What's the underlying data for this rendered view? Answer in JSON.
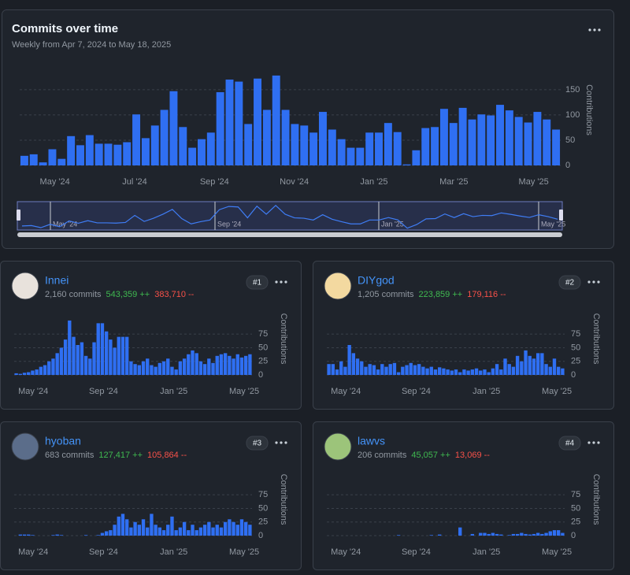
{
  "header": {
    "title": "Commits over time",
    "subtitle": "Weekly from Apr 7, 2024 to May 18, 2025"
  },
  "navigator": {
    "labels": [
      "May '24",
      "Sep '24",
      "Jan '25",
      "May '25"
    ]
  },
  "contributors": [
    {
      "name": "Innei",
      "commits": "2,160 commits",
      "additions": "543,359 ++",
      "deletions": "383,710 --",
      "rank": "#1"
    },
    {
      "name": "DIYgod",
      "commits": "1,205 commits",
      "additions": "223,859 ++",
      "deletions": "179,116 --",
      "rank": "#2"
    },
    {
      "name": "hyoban",
      "commits": "683 commits",
      "additions": "127,417 ++",
      "deletions": "105,864 --",
      "rank": "#3"
    },
    {
      "name": "lawvs",
      "commits": "206 commits",
      "additions": "45,057 ++",
      "deletions": "13,069 --",
      "rank": "#4"
    }
  ],
  "chart_data": [
    {
      "type": "bar",
      "y_label": "Contributions",
      "color": "#2f6ff2",
      "grid": true,
      "xtick_labels": [
        "May '24",
        "Jul '24",
        "Sep '24",
        "Nov '24",
        "Jan '25",
        "Mar '25",
        "May '25"
      ],
      "ylim": [
        0,
        195
      ],
      "yticks": [
        0,
        50,
        100,
        150
      ],
      "values": [
        19,
        22,
        6,
        32,
        13,
        58,
        40,
        60,
        43,
        43,
        41,
        46,
        101,
        54,
        79,
        110,
        147,
        76,
        35,
        52,
        65,
        145,
        170,
        166,
        82,
        172,
        110,
        178,
        110,
        82,
        79,
        65,
        106,
        71,
        52,
        35,
        35,
        65,
        65,
        84,
        66,
        2,
        30,
        74,
        76,
        112,
        84,
        114,
        91,
        101,
        99,
        120,
        109,
        96,
        85,
        106,
        91,
        71
      ]
    },
    {
      "type": "bar",
      "y_label": "Contributions",
      "color": "#2f6ff2",
      "grid": true,
      "xtick_labels": [
        "May '24",
        "Sep '24",
        "Jan '25",
        "May '25"
      ],
      "ylim": [
        0,
        110
      ],
      "yticks": [
        0,
        25,
        50,
        75
      ],
      "values": [
        3,
        2,
        4,
        5,
        8,
        10,
        15,
        18,
        25,
        30,
        40,
        50,
        65,
        100,
        70,
        55,
        60,
        35,
        30,
        60,
        95,
        95,
        80,
        65,
        50,
        70,
        70,
        70,
        25,
        20,
        18,
        25,
        30,
        18,
        15,
        22,
        25,
        30,
        15,
        10,
        25,
        30,
        38,
        45,
        40,
        25,
        20,
        30,
        22,
        35,
        38,
        40,
        35,
        30,
        38,
        32,
        35,
        38
      ]
    },
    {
      "type": "bar",
      "y_label": "Contributions",
      "color": "#2f6ff2",
      "grid": true,
      "xtick_labels": [
        "May '24",
        "Sep '24",
        "Jan '25",
        "May '25"
      ],
      "ylim": [
        0,
        110
      ],
      "yticks": [
        0,
        25,
        50,
        75
      ],
      "values": [
        20,
        20,
        10,
        25,
        15,
        55,
        40,
        30,
        25,
        15,
        20,
        18,
        10,
        20,
        15,
        20,
        22,
        5,
        15,
        18,
        22,
        18,
        20,
        15,
        12,
        15,
        10,
        14,
        12,
        10,
        8,
        10,
        5,
        10,
        8,
        10,
        12,
        8,
        10,
        5,
        12,
        20,
        10,
        30,
        20,
        15,
        35,
        25,
        45,
        35,
        30,
        40,
        40,
        20,
        15,
        30,
        15,
        12
      ]
    },
    {
      "type": "bar",
      "y_label": "Contributions",
      "color": "#2f6ff2",
      "grid": true,
      "xtick_labels": [
        "May '24",
        "Sep '24",
        "Jan '25",
        "May '25"
      ],
      "ylim": [
        0,
        110
      ],
      "yticks": [
        0,
        25,
        50,
        75
      ],
      "values": [
        0,
        2,
        2,
        2,
        1,
        0,
        0,
        0,
        0,
        1,
        2,
        1,
        0,
        0,
        0,
        0,
        0,
        1,
        0,
        0,
        1,
        5,
        8,
        10,
        20,
        35,
        40,
        30,
        15,
        25,
        20,
        30,
        15,
        40,
        20,
        15,
        10,
        20,
        35,
        10,
        15,
        25,
        10,
        20,
        10,
        15,
        20,
        25,
        15,
        20,
        15,
        25,
        30,
        25,
        20,
        30,
        25,
        20
      ]
    },
    {
      "type": "bar",
      "y_label": "Contributions",
      "color": "#2f6ff2",
      "grid": true,
      "xtick_labels": [
        "May '24",
        "Sep '24",
        "Jan '25",
        "May '25"
      ],
      "ylim": [
        0,
        110
      ],
      "yticks": [
        0,
        25,
        50,
        75
      ],
      "values": [
        0,
        0,
        0,
        0,
        0,
        0,
        0,
        0,
        0,
        0,
        0,
        0,
        0,
        0,
        0,
        0,
        0,
        1,
        0,
        0,
        0,
        0,
        0,
        0,
        0,
        1,
        0,
        2,
        0,
        0,
        0,
        0,
        15,
        0,
        0,
        3,
        0,
        5,
        5,
        3,
        5,
        3,
        2,
        0,
        1,
        3,
        3,
        5,
        3,
        2,
        3,
        5,
        3,
        5,
        8,
        10,
        10,
        5
      ]
    }
  ]
}
